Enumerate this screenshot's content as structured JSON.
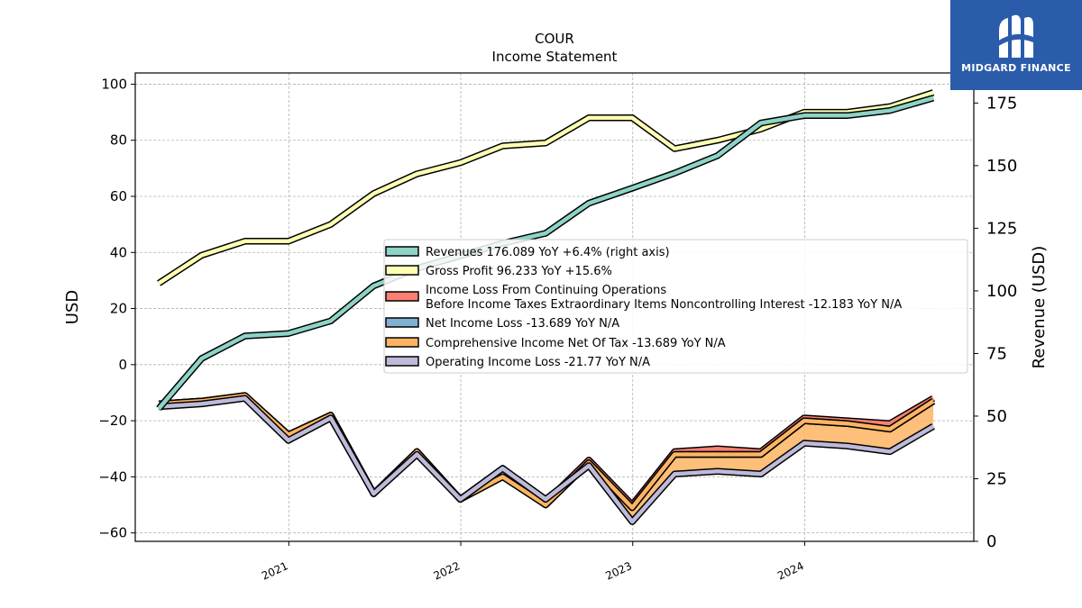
{
  "chart_data": {
    "type": "line",
    "title": "COUR",
    "subtitle": "Income Statement",
    "ylabel": "USD",
    "ylabel_right": "Revenue (USD)",
    "ylim": [
      -63,
      104
    ],
    "ylim_right": [
      0,
      187
    ],
    "yticks": [
      -60,
      -40,
      -20,
      0,
      20,
      40,
      60,
      80,
      100
    ],
    "yticks_right": [
      0,
      25,
      50,
      75,
      100,
      125,
      150,
      175
    ],
    "xlim": [
      "2020-02-10",
      "2024-12-25"
    ],
    "xticks": [
      {
        "date": "2021-01-01",
        "label": "2021"
      },
      {
        "date": "2022-01-01",
        "label": "2022"
      },
      {
        "date": "2023-01-01",
        "label": "2023"
      },
      {
        "date": "2024-01-01",
        "label": "2024"
      }
    ],
    "grid": true,
    "legend_position": "center-right",
    "x": [
      "2020-03-31",
      "2020-06-30",
      "2020-09-30",
      "2020-12-31",
      "2021-03-31",
      "2021-06-30",
      "2021-09-30",
      "2021-12-31",
      "2022-03-31",
      "2022-06-30",
      "2022-09-30",
      "2022-12-31",
      "2023-03-31",
      "2023-06-30",
      "2023-09-30",
      "2023-12-31",
      "2024-03-31",
      "2024-06-30",
      "2024-09-30"
    ],
    "series": [
      {
        "name": "Revenues  176.089 YoY +6.4% (right axis)",
        "axis": "right",
        "color": "#8dd3c7",
        "values": [
          53,
          73,
          82,
          83,
          88,
          102,
          109,
          114,
          119,
          123,
          135,
          141,
          147,
          154,
          167,
          170,
          170,
          172,
          177
        ]
      },
      {
        "name": "Gross Profit  96.233 YoY +15.6%",
        "axis": "left",
        "color": "#ffffb3",
        "values": [
          29,
          39,
          44,
          44,
          50,
          61,
          68,
          72,
          78,
          79,
          88,
          88,
          77,
          80,
          84,
          90,
          90,
          92,
          97
        ]
      },
      {
        "name": "Income Loss From Continuing Operations\nBefore Income Taxes Extraordinary Items Noncontrolling Interest  -12.183 YoY N/A",
        "axis": "left",
        "color": "#fb8072",
        "values": [
          -14,
          -13,
          -11,
          -25,
          -18,
          -46,
          -31,
          -48,
          -37,
          -49,
          -34,
          -50,
          -31,
          -30,
          -31,
          -19,
          -20,
          -21,
          -12
        ]
      },
      {
        "name": "Net Income Loss  -13.689 YoY N/A",
        "axis": "left",
        "color": "#80b1d3",
        "values": [
          -14,
          -13,
          -11,
          -25,
          -18,
          -46,
          -31,
          -48,
          -38,
          -50,
          -35,
          -51,
          -32,
          -32,
          -32,
          -20,
          -21,
          -23,
          -13
        ]
      },
      {
        "name": "Comprehensive Income Net Of Tax  -13.689 YoY N/A",
        "axis": "left",
        "color": "#fdb462",
        "values": [
          -14,
          -13,
          -11,
          -25,
          -18,
          -46,
          -31,
          -48,
          -40,
          -50,
          -35,
          -51,
          -32,
          -32,
          -32,
          -20,
          -21,
          -23,
          -13
        ]
      },
      {
        "name": "Operating Income Loss  -21.77 YoY N/A",
        "axis": "left",
        "color": "#bebada",
        "values": [
          -15,
          -14,
          -12,
          -27,
          -19,
          -46,
          -32,
          -48,
          -37,
          -48,
          -36,
          -56,
          -39,
          -38,
          -39,
          -28,
          -29,
          -31,
          -22
        ]
      }
    ]
  },
  "logo": {
    "text": "MIDGARD FINANCE"
  }
}
